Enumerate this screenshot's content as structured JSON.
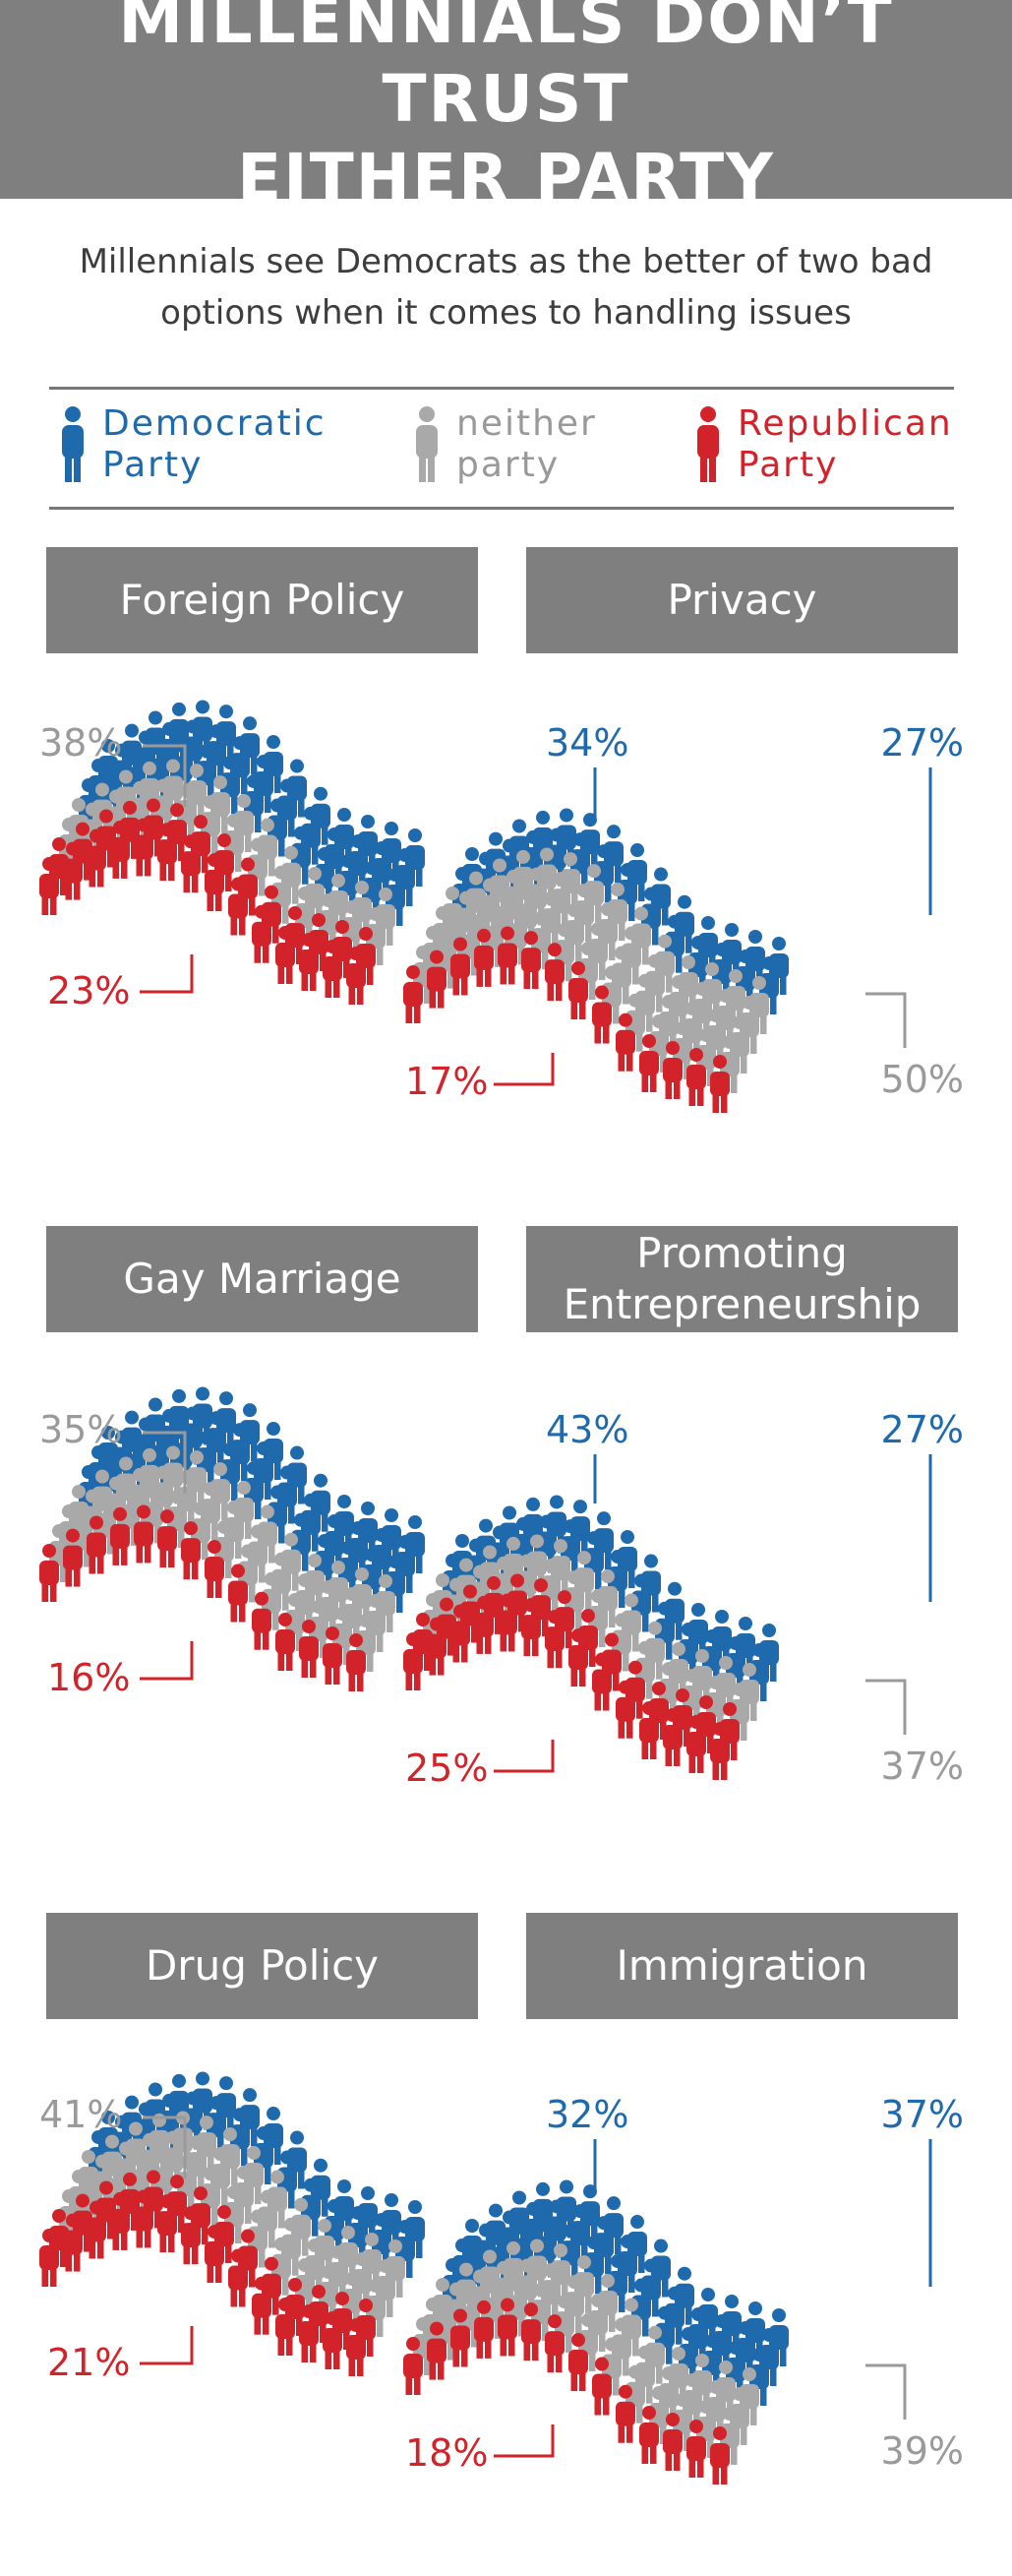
{
  "header": {
    "title_lines": [
      "MILLENNIALS DON’T TRUST",
      "EITHER PARTY"
    ],
    "subtitle_lines": [
      "Millennials see Democrats as the better of two bad",
      "options when it comes to handling issues"
    ]
  },
  "legend": {
    "items": [
      {
        "key": "democratic",
        "lines": [
          "Democratic",
          "Party"
        ]
      },
      {
        "key": "neither",
        "lines": [
          "neither",
          "party"
        ]
      },
      {
        "key": "republican",
        "lines": [
          "Republican",
          "Party"
        ]
      }
    ]
  },
  "colors": {
    "democratic": "#1f6aad",
    "neither": "#a9a9a9",
    "republican": "#d2232a",
    "banner": "#7f7f7f"
  },
  "icons": {
    "person": "person-icon"
  },
  "chart_data": [
    {
      "type": "bar",
      "title_lines": [
        "Foreign Policy"
      ],
      "categories": [
        "Democratic Party",
        "neither party",
        "Republican Party"
      ],
      "values": [
        34,
        38,
        23
      ],
      "unit": "%"
    },
    {
      "type": "bar",
      "title_lines": [
        "Privacy"
      ],
      "categories": [
        "Democratic Party",
        "neither party",
        "Republican Party"
      ],
      "values": [
        27,
        50,
        17
      ],
      "unit": "%"
    },
    {
      "type": "bar",
      "title_lines": [
        "Gay Marriage"
      ],
      "categories": [
        "Democratic Party",
        "neither party",
        "Republican Party"
      ],
      "values": [
        43,
        35,
        16
      ],
      "unit": "%"
    },
    {
      "type": "bar",
      "title_lines": [
        "Promoting",
        "Entrepreneurship"
      ],
      "categories": [
        "Democratic Party",
        "neither party",
        "Republican Party"
      ],
      "values": [
        27,
        37,
        25
      ],
      "unit": "%"
    },
    {
      "type": "bar",
      "title_lines": [
        "Drug Policy"
      ],
      "categories": [
        "Democratic Party",
        "neither party",
        "Republican Party"
      ],
      "values": [
        32,
        41,
        21
      ],
      "unit": "%"
    },
    {
      "type": "bar",
      "title_lines": [
        "Immigration"
      ],
      "categories": [
        "Democratic Party",
        "neither party",
        "Republican Party"
      ],
      "values": [
        37,
        39,
        18
      ],
      "unit": "%"
    }
  ]
}
